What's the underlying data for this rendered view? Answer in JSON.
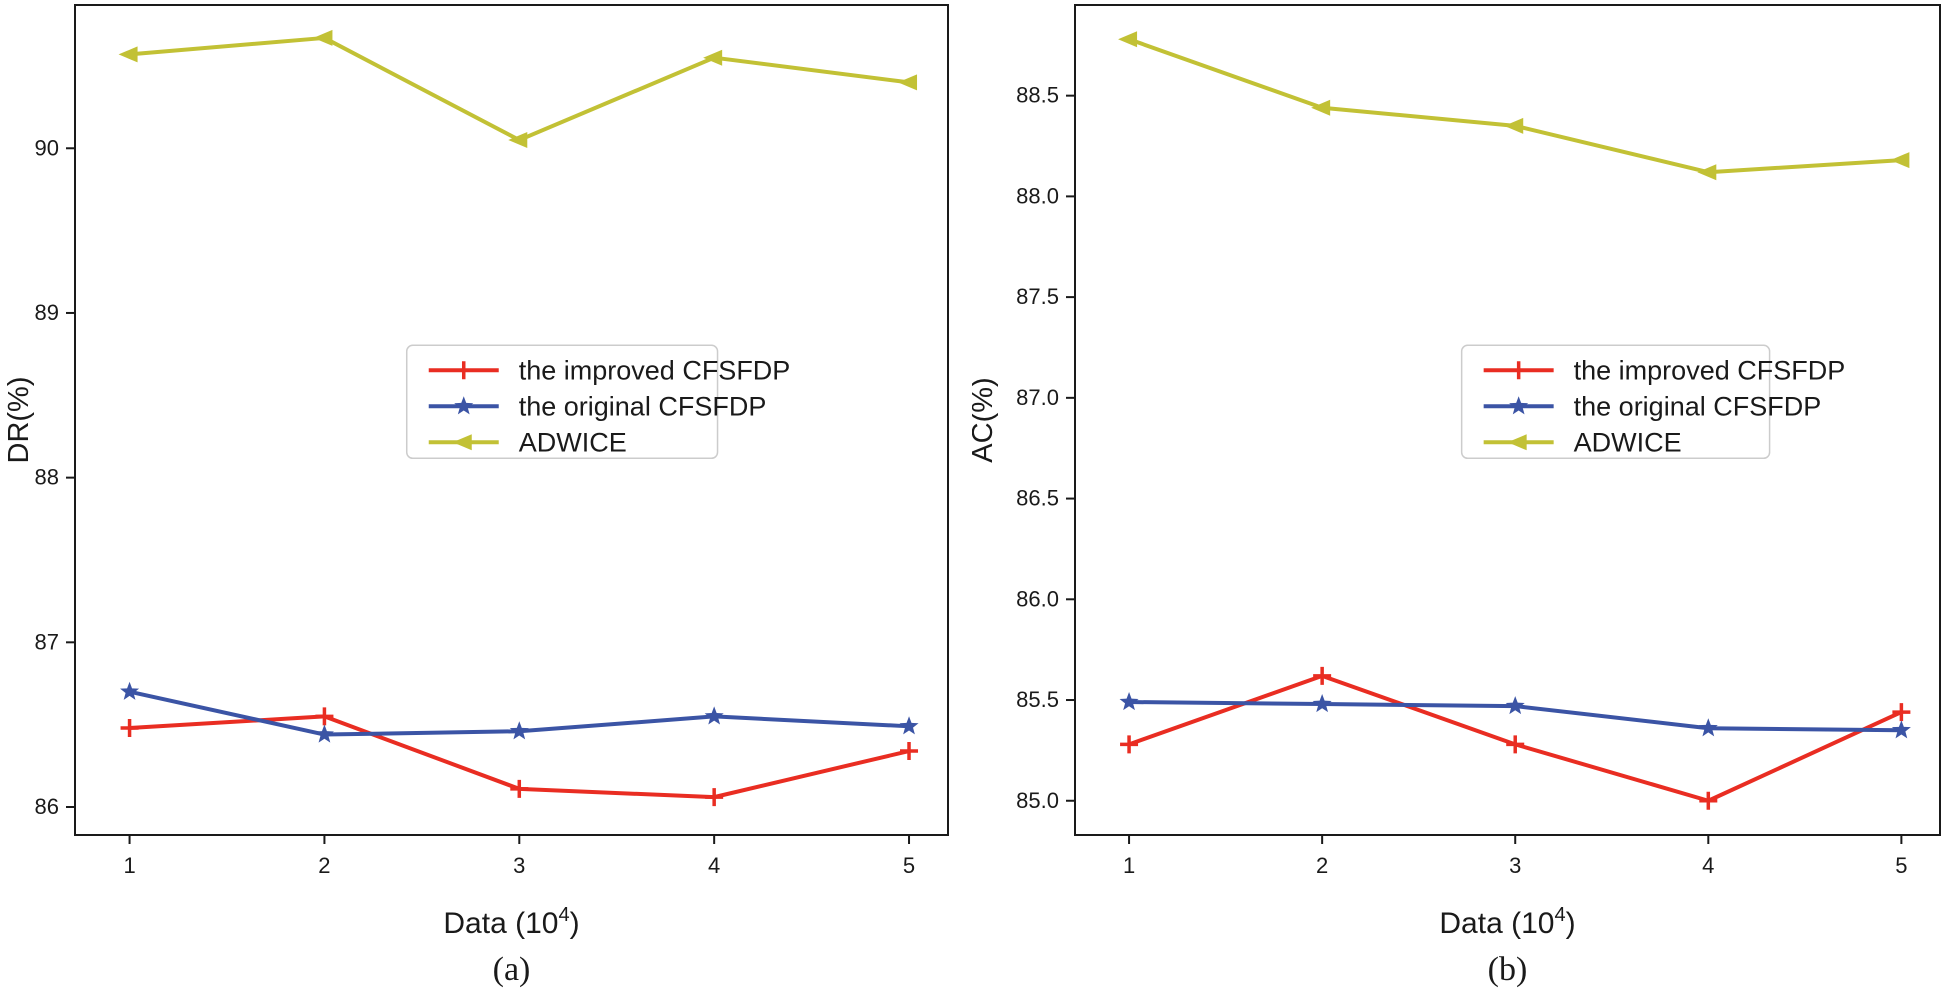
{
  "page": {
    "background": "#ffffff"
  },
  "chart_data": [
    {
      "type": "line",
      "panel_id": "a",
      "caption": "(a)",
      "xlabel_base": "Data (10",
      "xlabel_sup": "4",
      "xlabel_close": ")",
      "ylabel": "DR(%)",
      "x": [
        1,
        2,
        3,
        4,
        5
      ],
      "xtick_labels": [
        "1",
        "2",
        "3",
        "4",
        "5"
      ],
      "ytick_values": [
        86,
        87,
        88,
        89,
        90
      ],
      "ytick_labels": [
        "86",
        "87",
        "88",
        "89",
        "90"
      ],
      "xlim": [
        0.72,
        5.2
      ],
      "ylim": [
        85.83,
        90.87
      ],
      "grid": false,
      "legend_position": "center",
      "legend_x_frac": 0.38,
      "legend_y_frac": 0.41,
      "series": [
        {
          "name": "the improved CFSFDP",
          "color": "#e92d22",
          "marker": "plus",
          "values": [
            86.48,
            86.55,
            86.11,
            86.06,
            86.34
          ]
        },
        {
          "name": "the original CFSFDP",
          "color": "#3b54a5",
          "marker": "star",
          "values": [
            86.7,
            86.44,
            86.46,
            86.55,
            86.49
          ]
        },
        {
          "name": "ADWICE",
          "color": "#c2c135",
          "marker": "triangle-left",
          "values": [
            90.57,
            90.67,
            90.05,
            90.55,
            90.4
          ]
        }
      ]
    },
    {
      "type": "line",
      "panel_id": "b",
      "caption": "(b)",
      "xlabel_base": "Data (10",
      "xlabel_sup": "4",
      "xlabel_close": ")",
      "ylabel": "AC(%)",
      "x": [
        1,
        2,
        3,
        4,
        5
      ],
      "xtick_labels": [
        "1",
        "2",
        "3",
        "4",
        "5"
      ],
      "ytick_values": [
        85.0,
        85.5,
        86.0,
        86.5,
        87.0,
        87.5,
        88.0,
        88.5
      ],
      "ytick_labels": [
        "85.0",
        "85.5",
        "86.0",
        "86.5",
        "87.0",
        "87.5",
        "88.0",
        "88.5"
      ],
      "xlim": [
        0.72,
        5.2
      ],
      "ylim": [
        84.83,
        88.95
      ],
      "grid": false,
      "legend_position": "center",
      "legend_x_frac": 0.447,
      "legend_y_frac": 0.41,
      "series": [
        {
          "name": "the improved CFSFDP",
          "color": "#e92d22",
          "marker": "plus",
          "values": [
            85.28,
            85.62,
            85.28,
            85.0,
            85.44
          ]
        },
        {
          "name": "the original CFSFDP",
          "color": "#3b54a5",
          "marker": "star",
          "values": [
            85.49,
            85.48,
            85.47,
            85.36,
            85.35
          ]
        },
        {
          "name": "ADWICE",
          "color": "#c2c135",
          "marker": "triangle-left",
          "values": [
            88.78,
            88.44,
            88.35,
            88.12,
            88.18
          ]
        }
      ]
    }
  ],
  "style": {
    "axis_color": "#1a1a1a",
    "legend_border_color": "#cccccc",
    "line_width": 4
  }
}
